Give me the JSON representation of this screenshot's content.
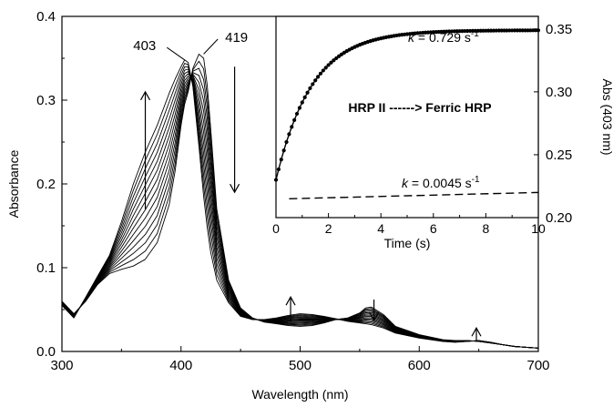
{
  "chart_data": [
    {
      "type": "line",
      "role": "main",
      "xlabel": "Wavelength (nm)",
      "ylabel": "Absorbance",
      "xlim": [
        300,
        700
      ],
      "ylim": [
        0.0,
        0.4
      ],
      "x_ticks": [
        300,
        400,
        500,
        600,
        700
      ],
      "x_tick_labels": [
        "300",
        "400",
        "500",
        "600",
        "700"
      ],
      "y_ticks": [
        0.0,
        0.1,
        0.2,
        0.3,
        0.4
      ],
      "y_tick_labels": [
        "0.0",
        "0.1",
        "0.2",
        "0.3",
        "0.4"
      ],
      "grid": false,
      "series_count": 14,
      "wavelength_nm": [
        300,
        310,
        320,
        330,
        340,
        350,
        360,
        370,
        380,
        390,
        395,
        400,
        403,
        406,
        410,
        415,
        419,
        422,
        425,
        430,
        440,
        450,
        460,
        470,
        480,
        490,
        500,
        510,
        520,
        530,
        540,
        550,
        555,
        560,
        570,
        580,
        600,
        620,
        630,
        640,
        650,
        660,
        670,
        680,
        690,
        700
      ],
      "first_spectrum": [
        0.06,
        0.045,
        0.06,
        0.08,
        0.093,
        0.098,
        0.102,
        0.11,
        0.13,
        0.175,
        0.215,
        0.27,
        0.295,
        0.31,
        0.338,
        0.355,
        0.35,
        0.318,
        0.265,
        0.17,
        0.085,
        0.052,
        0.04,
        0.035,
        0.033,
        0.031,
        0.03,
        0.031,
        0.034,
        0.038,
        0.04,
        0.046,
        0.052,
        0.053,
        0.044,
        0.03,
        0.02,
        0.014,
        0.013,
        0.013,
        0.012,
        0.01,
        0.008,
        0.006,
        0.005,
        0.004
      ],
      "last_spectrum": [
        0.055,
        0.04,
        0.065,
        0.09,
        0.115,
        0.155,
        0.2,
        0.238,
        0.27,
        0.308,
        0.325,
        0.34,
        0.348,
        0.345,
        0.316,
        0.245,
        0.185,
        0.148,
        0.118,
        0.085,
        0.058,
        0.042,
        0.038,
        0.038,
        0.04,
        0.043,
        0.045,
        0.044,
        0.042,
        0.039,
        0.036,
        0.034,
        0.033,
        0.032,
        0.028,
        0.022,
        0.016,
        0.012,
        0.011,
        0.012,
        0.013,
        0.011,
        0.008,
        0.006,
        0.005,
        0.004
      ],
      "annotations": [
        {
          "text": "403",
          "x": 403,
          "y": 0.348,
          "label_x": 379,
          "label_y": 0.365
        },
        {
          "text": "419",
          "x": 419,
          "y": 0.355,
          "label_x": 437,
          "label_y": 0.375
        }
      ],
      "arrows": [
        {
          "x": 370,
          "y_from": 0.17,
          "y_to": 0.31,
          "direction": "up"
        },
        {
          "x": 445,
          "y_from": 0.34,
          "y_to": 0.19,
          "direction": "down"
        },
        {
          "x": 492,
          "y_from": 0.035,
          "y_to": 0.065,
          "direction": "up"
        },
        {
          "x": 562,
          "y_from": 0.062,
          "y_to": 0.037,
          "direction": "down"
        },
        {
          "x": 648,
          "y_from": 0.012,
          "y_to": 0.028,
          "direction": "up"
        }
      ]
    },
    {
      "type": "scatter",
      "role": "inset",
      "xlabel": "Time (s)",
      "ylabel": "Abs (403 nm)",
      "xlim": [
        0,
        10
      ],
      "ylim": [
        0.2,
        0.36
      ],
      "x_ticks": [
        0,
        2,
        4,
        6,
        8,
        10
      ],
      "x_tick_labels": [
        "0",
        "2",
        "4",
        "6",
        "8",
        "10"
      ],
      "y_ticks": [
        0.2,
        0.25,
        0.3,
        0.35
      ],
      "y_tick_labels": [
        "0.20",
        "0.25",
        "0.30",
        "0.35"
      ],
      "y_axis_side": "right",
      "grid": false,
      "fast_trace": {
        "model": "single exponential rise",
        "y0": 0.23,
        "y_final": 0.349,
        "k": 0.729,
        "k_label": "0.729",
        "t_start": 0,
        "t_end": 10,
        "dt": 0.1
      },
      "slow_trace": {
        "style": "dashed",
        "k": 0.0045,
        "k_label": "0.0045",
        "x": [
          0.5,
          10
        ],
        "y": [
          0.215,
          0.22
        ]
      },
      "reaction_label": "HRP II ------> Ferric HRP",
      "k_prefix": "k",
      "k_units": "= {v} s",
      "k_exponent": "-1"
    }
  ]
}
